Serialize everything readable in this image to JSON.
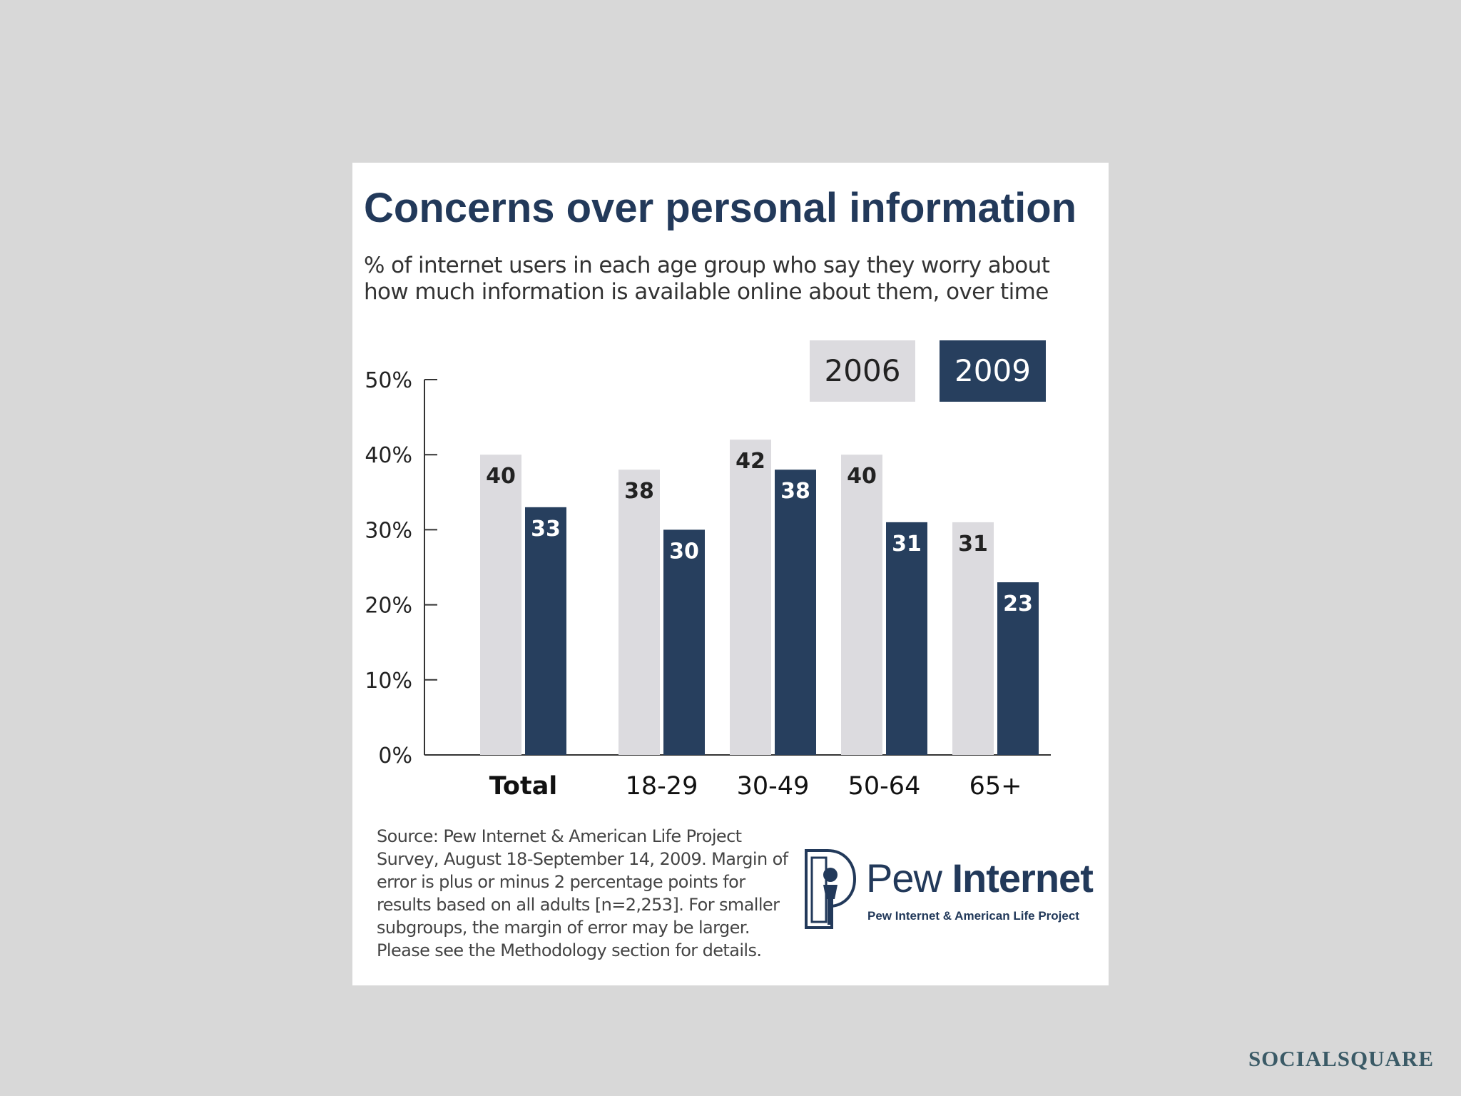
{
  "chart_data": {
    "type": "bar",
    "title": "Concerns over personal information",
    "subtitle": "% of internet users in each age group who say they worry about how much information is available online about them, over time",
    "categories": [
      "Total",
      "18-29",
      "30-49",
      "50-64",
      "65+"
    ],
    "series": [
      {
        "name": "2006",
        "color": "#dcdbdf",
        "label_color": "#222222",
        "values": [
          40,
          38,
          42,
          40,
          31
        ]
      },
      {
        "name": "2009",
        "color": "#273f5e",
        "label_color": "#ffffff",
        "values": [
          33,
          30,
          38,
          31,
          23
        ]
      }
    ],
    "ylim": [
      0,
      50
    ],
    "yticks": [
      "0%",
      "10%",
      "20%",
      "30%",
      "40%",
      "50%"
    ],
    "ytick_values": [
      0,
      10,
      20,
      30,
      40,
      50
    ],
    "xlabel": "",
    "ylabel": "",
    "grid": false,
    "legend_position": "top-right",
    "bold_categories": [
      "Total"
    ]
  },
  "source_note": "Source: Pew Internet & American Life Project Survey, August 18-September 14, 2009. Margin of error is plus or minus 2 percentage points for results based on all adults [n=2,253]. For smaller subgroups, the margin of error may be larger. Please see the Methodology section for details.",
  "logo": {
    "name_regular": "Pew",
    "name_bold": "Internet",
    "tagline": "Pew Internet & American Life Project",
    "icon": "pew-logo-mark-icon"
  },
  "brand": "SOCIALSQUARE"
}
